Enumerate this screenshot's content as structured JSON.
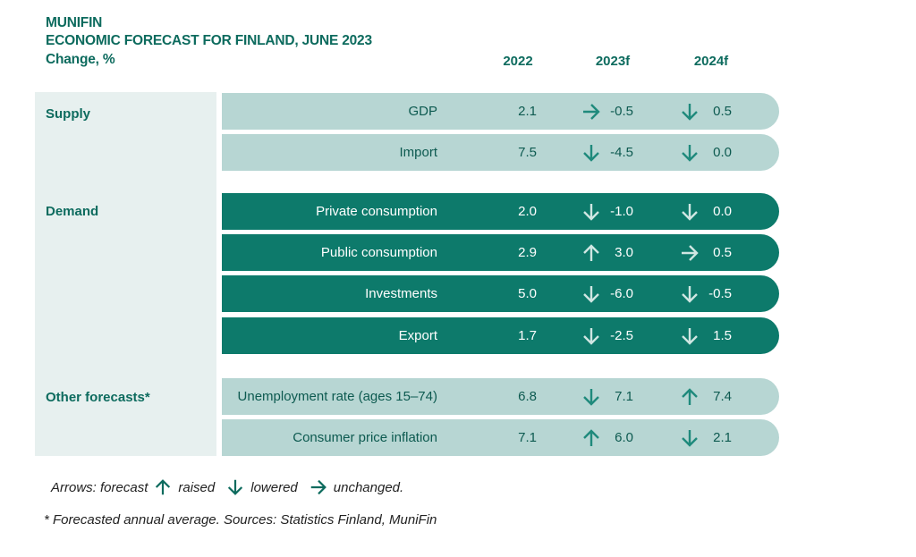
{
  "header": {
    "line1": "MUNIFIN",
    "line2": "ECONOMIC FORECAST FOR FINLAND, JUNE 2023",
    "line3": "Change, %"
  },
  "chart_data": {
    "type": "table",
    "columns": [
      "2022",
      "2023f",
      "2024f"
    ],
    "groups": [
      {
        "name": "Supply",
        "style": "light",
        "rows": [
          {
            "label": "GDP",
            "v2022": "2.1",
            "v2023": "-0.5",
            "a2023": "unchanged",
            "v2024": "0.5",
            "a2024": "lowered"
          },
          {
            "label": "Import",
            "v2022": "7.5",
            "v2023": "-4.5",
            "a2023": "lowered",
            "v2024": "0.0",
            "a2024": "lowered"
          }
        ]
      },
      {
        "name": "Demand",
        "style": "dark",
        "rows": [
          {
            "label": "Private consumption",
            "v2022": "2.0",
            "v2023": "-1.0",
            "a2023": "lowered",
            "v2024": "0.0",
            "a2024": "lowered"
          },
          {
            "label": "Public consumption",
            "v2022": "2.9",
            "v2023": "3.0",
            "a2023": "raised",
            "v2024": "0.5",
            "a2024": "unchanged"
          },
          {
            "label": "Investments",
            "v2022": "5.0",
            "v2023": "-6.0",
            "a2023": "lowered",
            "v2024": "-0.5",
            "a2024": "lowered"
          },
          {
            "label": "Export",
            "v2022": "1.7",
            "v2023": "-2.5",
            "a2023": "lowered",
            "v2024": "1.5",
            "a2024": "lowered"
          }
        ]
      },
      {
        "name": "Other forecasts*",
        "style": "light",
        "rows": [
          {
            "label": "Unemployment rate (ages 15–74)",
            "v2022": "6.8",
            "v2023": "7.1",
            "a2023": "lowered",
            "v2024": "7.4",
            "a2024": "raised"
          },
          {
            "label": "Consumer price inflation",
            "v2022": "7.1",
            "v2023": "6.0",
            "a2023": "raised",
            "v2024": "2.1",
            "a2024": "lowered"
          }
        ]
      }
    ]
  },
  "legend": {
    "prefix": "Arrows: forecast",
    "raised": "raised",
    "lowered": "lowered",
    "unchanged": "unchanged."
  },
  "footnote": "* Forecasted annual average. Sources: Statistics Finland, MuniFin",
  "colors": {
    "accent": "#0d6b5e",
    "row_light": "#b7d6d3",
    "row_dark": "#0d7a6b",
    "panel": "#e7f0ef"
  }
}
